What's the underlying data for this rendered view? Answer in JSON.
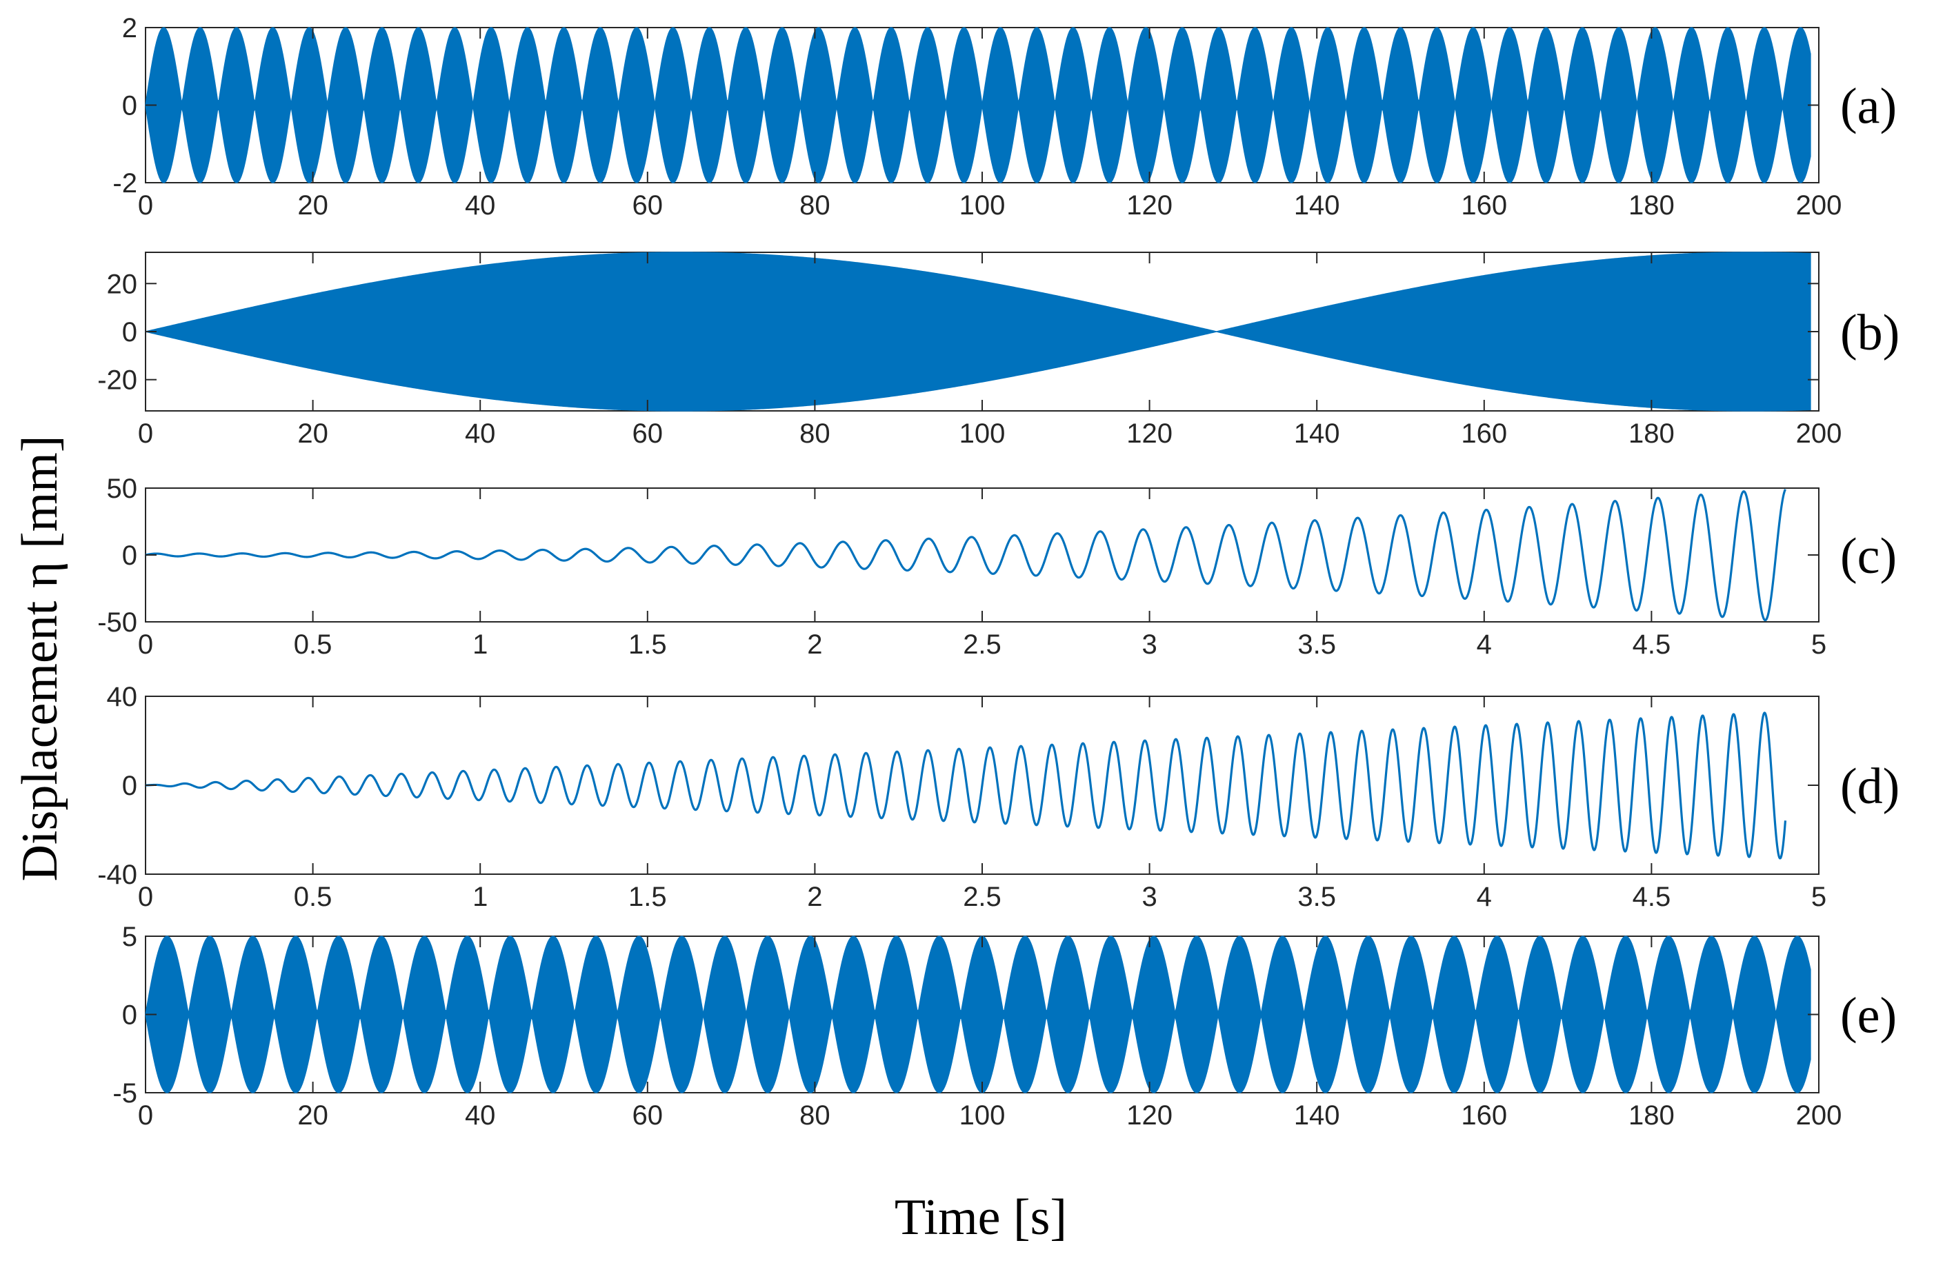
{
  "chart_data": {
    "type": "line",
    "xlabel": "Time [s]",
    "ylabel": "Displacement η [mm]",
    "line_color": "#0072BD",
    "panels": [
      {
        "label": "(a)",
        "signal": "beating",
        "x_range": [
          0,
          200
        ],
        "x_ticks": [
          0,
          20,
          40,
          60,
          80,
          100,
          120,
          140,
          160,
          180,
          200
        ],
        "y_range": [
          -2,
          2
        ],
        "y_ticks": [
          -2,
          0,
          2
        ],
        "envelope_amplitude": 2,
        "envelope_beats": 46,
        "x_end": 199
      },
      {
        "label": "(b)",
        "signal": "beating",
        "x_range": [
          0,
          200
        ],
        "x_ticks": [
          0,
          20,
          40,
          60,
          80,
          100,
          120,
          140,
          160,
          180,
          200
        ],
        "y_range": [
          -33,
          33
        ],
        "y_ticks": [
          -20,
          0,
          20
        ],
        "envelope_amplitude": 33,
        "envelope_period": 128,
        "x_end": 199
      },
      {
        "label": "(c)",
        "signal": "growing-sinusoid",
        "x_range": [
          0,
          5
        ],
        "x_ticks": [
          0,
          0.5,
          1,
          1.5,
          2,
          2.5,
          3,
          3.5,
          4,
          4.5,
          5
        ],
        "y_range": [
          -50,
          50
        ],
        "y_ticks": [
          -50,
          0,
          50
        ],
        "frequency_hz": 7.8,
        "final_amplitude": 50,
        "growth": "quadratic",
        "x_end": 4.9
      },
      {
        "label": "(d)",
        "signal": "growing-sinusoid",
        "x_range": [
          0,
          5
        ],
        "x_ticks": [
          0,
          0.5,
          1,
          1.5,
          2,
          2.5,
          3,
          3.5,
          4,
          4.5,
          5
        ],
        "y_range": [
          -40,
          40
        ],
        "y_ticks": [
          -40,
          0,
          40
        ],
        "frequency_hz": 10.8,
        "final_amplitude": 33,
        "growth": "linear",
        "x_end": 4.9
      },
      {
        "label": "(e)",
        "signal": "beating",
        "x_range": [
          0,
          200
        ],
        "x_ticks": [
          0,
          20,
          40,
          60,
          80,
          100,
          120,
          140,
          160,
          180,
          200
        ],
        "y_range": [
          -5,
          5
        ],
        "y_ticks": [
          -5,
          0,
          5
        ],
        "envelope_amplitude": 5,
        "envelope_beats": 39,
        "x_end": 199
      }
    ]
  }
}
